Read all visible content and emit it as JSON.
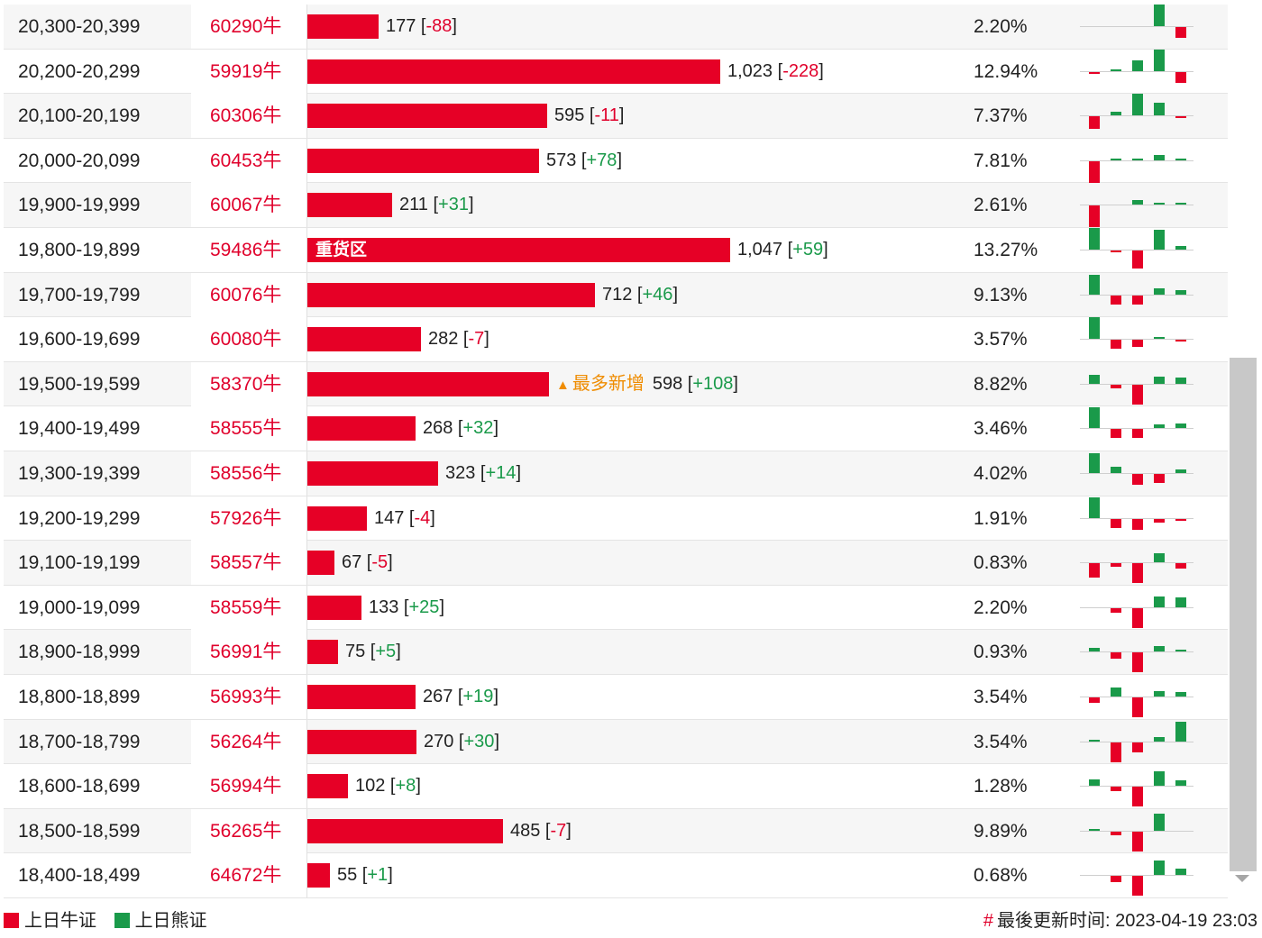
{
  "colors": {
    "bull": "#e60026",
    "bear": "#1a9a4a",
    "code_text": "#e0002b",
    "tag": "#ef8c00"
  },
  "rows": [
    {
      "range": "20,300-20,399",
      "code": "60290牛",
      "qty": "177",
      "delta": "-88",
      "pct": "2.20%",
      "bar_ratio": 0.169,
      "spark": [
        0,
        0,
        0,
        2,
        -1,
        0
      ]
    },
    {
      "range": "20,200-20,299",
      "code": "59919牛",
      "qty": "1,023",
      "delta": "-228",
      "pct": "12.94%",
      "bar_ratio": 0.977,
      "spark": [
        -0.2,
        0.1,
        1,
        2,
        -1,
        0
      ]
    },
    {
      "range": "20,100-20,199",
      "code": "60306牛",
      "qty": "595",
      "delta": "-11",
      "pct": "7.37%",
      "bar_ratio": 0.568,
      "spark": [
        -1.2,
        0.3,
        2,
        1.2,
        -0.1,
        0
      ]
    },
    {
      "range": "20,000-20,099",
      "code": "60453牛",
      "qty": "573",
      "delta": "+78",
      "pct": "7.81%",
      "bar_ratio": 0.547,
      "spark": [
        -2,
        0.1,
        0.1,
        0.5,
        0.1,
        0
      ]
    },
    {
      "range": "19,900-19,999",
      "code": "60067牛",
      "qty": "211",
      "delta": "+31",
      "pct": "2.61%",
      "bar_ratio": 0.201,
      "spark": [
        -2,
        0,
        0.4,
        0.2,
        0.2,
        0
      ]
    },
    {
      "range": "19,800-19,899",
      "code": "59486牛",
      "qty": "1,047",
      "delta": "+59",
      "pct": "13.27%",
      "bar_ratio": 1.0,
      "heavy": "重货区",
      "spark": [
        2,
        -0.2,
        -1.7,
        1.8,
        0.3,
        0
      ]
    },
    {
      "range": "19,700-19,799",
      "code": "60076牛",
      "qty": "712",
      "delta": "+46",
      "pct": "9.13%",
      "bar_ratio": 0.68,
      "spark": [
        1.8,
        -0.8,
        -0.8,
        0.6,
        0.4,
        0
      ]
    },
    {
      "range": "19,600-19,699",
      "code": "60080牛",
      "qty": "282",
      "delta": "-7",
      "pct": "3.57%",
      "bar_ratio": 0.269,
      "spark": [
        2,
        -0.8,
        -0.7,
        0.2,
        -0.1,
        0
      ]
    },
    {
      "range": "19,500-19,599",
      "code": "58370牛",
      "qty": "598",
      "delta": "+108",
      "pct": "8.82%",
      "bar_ratio": 0.571,
      "tag": "最多新增",
      "spark": [
        0.8,
        -0.3,
        -1.8,
        0.7,
        0.6,
        0
      ]
    },
    {
      "range": "19,400-19,499",
      "code": "58555牛",
      "qty": "268",
      "delta": "+32",
      "pct": "3.46%",
      "bar_ratio": 0.256,
      "spark": [
        1.9,
        -0.8,
        -0.8,
        0.3,
        0.4,
        0
      ]
    },
    {
      "range": "19,300-19,399",
      "code": "58556牛",
      "qty": "323",
      "delta": "+14",
      "pct": "4.02%",
      "bar_ratio": 0.309,
      "spark": [
        1.8,
        0.6,
        -1,
        -0.8,
        0.3,
        0
      ]
    },
    {
      "range": "19,200-19,299",
      "code": "57926牛",
      "qty": "147",
      "delta": "-4",
      "pct": "1.91%",
      "bar_ratio": 0.14,
      "spark": [
        1.9,
        -0.8,
        -1,
        -0.3,
        -0.2,
        0
      ]
    },
    {
      "range": "19,100-19,199",
      "code": "58557牛",
      "qty": "67",
      "delta": "-5",
      "pct": "0.83%",
      "bar_ratio": 0.064,
      "spark": [
        -1.3,
        -0.3,
        -1.8,
        0.8,
        -0.5,
        0
      ]
    },
    {
      "range": "19,000-19,099",
      "code": "58559牛",
      "qty": "133",
      "delta": "+25",
      "pct": "2.20%",
      "bar_ratio": 0.127,
      "spark": [
        0,
        -0.4,
        -1.8,
        1,
        0.9,
        0
      ]
    },
    {
      "range": "18,900-18,999",
      "code": "56991牛",
      "qty": "75",
      "delta": "+5",
      "pct": "0.93%",
      "bar_ratio": 0.072,
      "spark": [
        0.3,
        -0.6,
        -1.8,
        0.5,
        0.2,
        0
      ]
    },
    {
      "range": "18,800-18,899",
      "code": "56993牛",
      "qty": "267",
      "delta": "+19",
      "pct": "3.54%",
      "bar_ratio": 0.255,
      "spark": [
        -0.5,
        0.8,
        -1.8,
        0.5,
        0.4,
        0
      ]
    },
    {
      "range": "18,700-18,799",
      "code": "56264牛",
      "qty": "270",
      "delta": "+30",
      "pct": "3.54%",
      "bar_ratio": 0.258,
      "spark": [
        0.1,
        -1.8,
        -0.9,
        0.4,
        1.8,
        0
      ]
    },
    {
      "range": "18,600-18,699",
      "code": "56994牛",
      "qty": "102",
      "delta": "+8",
      "pct": "1.28%",
      "bar_ratio": 0.097,
      "spark": [
        0.6,
        -0.4,
        -1.8,
        1.3,
        0.5,
        0
      ]
    },
    {
      "range": "18,500-18,599",
      "code": "56265牛",
      "qty": "485",
      "delta": "-7",
      "pct": "9.89%",
      "bar_ratio": 0.463,
      "spark": [
        0.1,
        -0.3,
        -1.8,
        1.6,
        0,
        0
      ]
    },
    {
      "range": "18,400-18,499",
      "code": "64672牛",
      "qty": "55",
      "delta": "+1",
      "pct": "0.68%",
      "bar_ratio": 0.053,
      "spark": [
        0,
        -0.6,
        -1.8,
        1.3,
        0.6,
        0
      ]
    }
  ],
  "legend": {
    "bull_label": "上日牛证",
    "bear_label": "上日熊证"
  },
  "update": {
    "hash": "#",
    "label": "最後更新时间: 2023-04-19 23:03"
  }
}
